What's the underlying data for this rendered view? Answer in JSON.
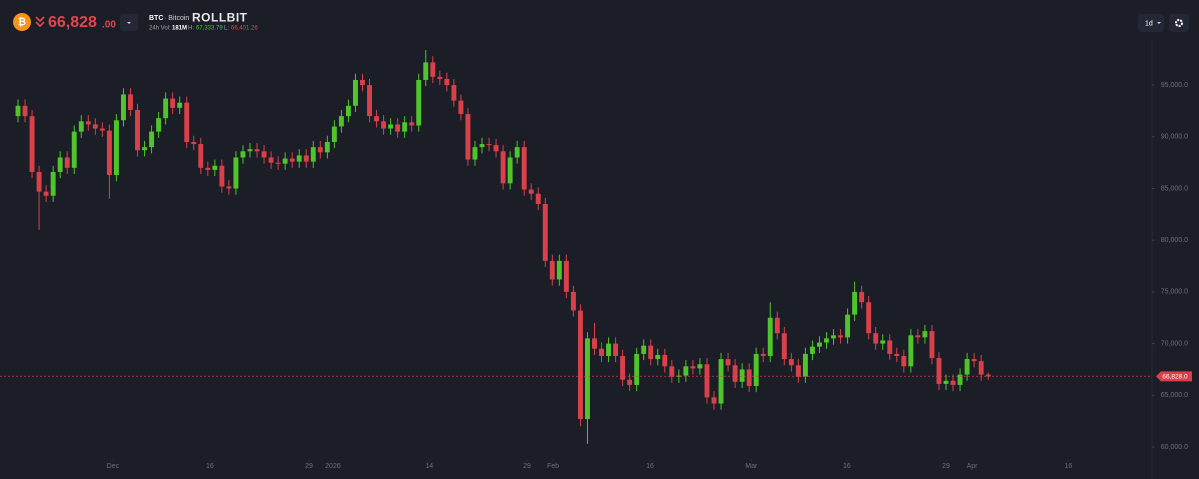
{
  "header": {
    "price": "66,828",
    "price_decimals": ".00",
    "symbol": "BTC",
    "name": "· Bitcoin",
    "brand": "ROLLBIT",
    "volume_label": "24h Vol:",
    "volume": "181M",
    "high_label": "H:",
    "high": "67,333.79",
    "low_label": "L:",
    "low": "66,401.26",
    "interval": "1d"
  },
  "chart_data": {
    "type": "candlestick",
    "up_color": "#4fc42b",
    "down_color": "#d9414a",
    "grid": false,
    "open": [
      92000,
      93000,
      92000,
      86600,
      84700,
      84300,
      86600,
      88000,
      87000,
      90500,
      91500,
      91200,
      90800,
      90600,
      86300,
      91600,
      94100,
      92600,
      88700,
      89000,
      90500,
      91800,
      93700,
      92800,
      93300,
      89500,
      89300,
      87000,
      86800,
      87200,
      85200,
      85000,
      88000,
      88600,
      88800,
      88600,
      88000,
      87500,
      87400,
      87900,
      87600,
      88200,
      87600,
      89000,
      88500,
      89500,
      91000,
      92000,
      93000,
      95500,
      95000,
      92000,
      91500,
      90800,
      91200,
      90500,
      91400,
      91100,
      95500,
      97200,
      95800,
      95600,
      95000,
      93500,
      92200,
      87800,
      89000,
      89300,
      89200,
      88600,
      85500,
      88000,
      89000,
      84900,
      84500,
      83500,
      78000,
      76200,
      78000,
      75000,
      73200,
      62700,
      70500,
      69500,
      68800,
      70000,
      68800,
      66500,
      66000,
      69000,
      69800,
      68500,
      68900,
      67800,
      66800,
      66900,
      67800,
      67600,
      68000,
      64800,
      64200,
      68500,
      67900,
      66300,
      67500,
      65900,
      69000,
      68800,
      72500,
      71000,
      68500,
      67900,
      66800,
      69000,
      69700,
      70100,
      70500,
      70800,
      70600,
      72800,
      75000,
      74000,
      71000,
      70000,
      70300,
      69000,
      68800,
      67800,
      70800,
      70600,
      71200,
      68600,
      66100,
      66400,
      66000,
      67000,
      68500,
      68300,
      67000
    ],
    "high": [
      93600,
      93600,
      92600,
      87200,
      85300,
      87200,
      88600,
      88600,
      91100,
      92100,
      92100,
      91800,
      91400,
      91200,
      92200,
      94700,
      94700,
      93200,
      89600,
      91100,
      92400,
      94300,
      94300,
      93900,
      93900,
      90100,
      89900,
      87600,
      87800,
      87800,
      85800,
      88600,
      89200,
      89400,
      89400,
      89200,
      88600,
      88100,
      88500,
      88500,
      88800,
      88800,
      89600,
      89600,
      90100,
      91600,
      92600,
      93600,
      96100,
      96100,
      95600,
      92600,
      92100,
      91800,
      91800,
      92000,
      92000,
      96100,
      98400,
      97800,
      96400,
      96200,
      95600,
      94100,
      92800,
      89600,
      89900,
      89900,
      89800,
      89200,
      88600,
      89600,
      89600,
      85500,
      85100,
      84100,
      78600,
      78600,
      78600,
      75600,
      73800,
      71100,
      72000,
      70100,
      70600,
      70600,
      69400,
      67100,
      69600,
      70400,
      70400,
      69500,
      69500,
      68400,
      67500,
      68400,
      68400,
      68600,
      68600,
      65400,
      69100,
      69100,
      68500,
      68100,
      68100,
      69600,
      69600,
      74000,
      73100,
      71600,
      69100,
      68500,
      69600,
      70300,
      70700,
      71100,
      71400,
      71400,
      73400,
      76000,
      75600,
      74600,
      71600,
      70900,
      70900,
      69600,
      69400,
      71400,
      71400,
      71800,
      71800,
      69200,
      67000,
      67000,
      67600,
      69100,
      69100,
      68900,
      67200
    ],
    "low": [
      91400,
      91400,
      86000,
      81000,
      83700,
      83700,
      86000,
      86400,
      86400,
      89900,
      90600,
      90200,
      90000,
      84000,
      85700,
      91000,
      92000,
      88100,
      88100,
      88400,
      89900,
      91200,
      92200,
      92200,
      88900,
      88700,
      86400,
      86200,
      86200,
      84600,
      84400,
      84400,
      87400,
      88000,
      88000,
      87400,
      86900,
      86800,
      86800,
      87000,
      87000,
      87000,
      87000,
      87900,
      87900,
      88900,
      90400,
      91400,
      92400,
      94400,
      91400,
      90900,
      90200,
      90200,
      89900,
      89900,
      90500,
      90500,
      94900,
      95200,
      95000,
      94400,
      92900,
      91600,
      87200,
      87200,
      88400,
      88600,
      88000,
      84900,
      84900,
      87400,
      84300,
      83900,
      82900,
      77400,
      75600,
      75600,
      74400,
      72600,
      62000,
      60300,
      68900,
      68200,
      68200,
      68200,
      65900,
      65400,
      65400,
      68400,
      67900,
      67900,
      67200,
      66200,
      66200,
      66300,
      67000,
      67000,
      64200,
      63600,
      63600,
      67300,
      65700,
      65700,
      65300,
      65300,
      68200,
      68200,
      70400,
      67900,
      67300,
      66200,
      66200,
      68400,
      69100,
      69500,
      69900,
      70000,
      70000,
      72200,
      73400,
      70400,
      69400,
      69400,
      68400,
      68200,
      67200,
      67200,
      70000,
      70000,
      68000,
      65500,
      65500,
      65400,
      65400,
      66400,
      67700,
      66400,
      66500
    ],
    "close": [
      93000,
      92000,
      86600,
      84700,
      84300,
      86600,
      88000,
      87000,
      90500,
      91500,
      91200,
      90800,
      90600,
      86300,
      91600,
      94100,
      92600,
      88700,
      89000,
      90500,
      91800,
      93700,
      92800,
      93300,
      89500,
      89300,
      87000,
      86800,
      87200,
      85200,
      85000,
      88000,
      88600,
      88800,
      88600,
      88000,
      87500,
      87400,
      87900,
      87600,
      88200,
      87600,
      89000,
      88500,
      89500,
      91000,
      92000,
      93000,
      95500,
      95000,
      92000,
      91500,
      90800,
      91200,
      90500,
      91400,
      91100,
      95500,
      97200,
      95800,
      95600,
      95000,
      93500,
      92200,
      87800,
      89000,
      89300,
      89200,
      88600,
      85500,
      88000,
      89000,
      84900,
      84500,
      83500,
      78000,
      76200,
      78000,
      75000,
      73200,
      62700,
      70500,
      69500,
      68800,
      70000,
      68800,
      66500,
      66000,
      69000,
      69800,
      68500,
      68900,
      67800,
      66800,
      66900,
      67800,
      67600,
      68000,
      64800,
      64200,
      68500,
      67900,
      66300,
      67500,
      65900,
      69000,
      68800,
      72500,
      71000,
      68500,
      67900,
      66800,
      69000,
      69700,
      70100,
      70500,
      70800,
      70600,
      72800,
      75000,
      74000,
      71000,
      70000,
      70300,
      69000,
      68800,
      67800,
      70800,
      70600,
      71200,
      68600,
      66100,
      66400,
      66000,
      67000,
      68500,
      68300,
      67000,
      66828
    ],
    "last_price": {
      "value": 66828,
      "label": "66,828.0"
    },
    "xlim": [
      -2.56,
      161.3
    ],
    "xticks": [
      {
        "value": 13.5,
        "label": "Dec"
      },
      {
        "value": 27.3,
        "label": "16"
      },
      {
        "value": 41.4,
        "label": "29"
      },
      {
        "value": 44.8,
        "label": "2026"
      },
      {
        "value": 58.5,
        "label": "14"
      },
      {
        "value": 72.4,
        "label": "29"
      },
      {
        "value": 76.1,
        "label": "Feb"
      },
      {
        "value": 89.9,
        "label": "16"
      },
      {
        "value": 104.3,
        "label": "Mar"
      },
      {
        "value": 117.9,
        "label": "16"
      },
      {
        "value": 132,
        "label": "29"
      },
      {
        "value": 135.7,
        "label": "Apr"
      },
      {
        "value": 149.4,
        "label": "16"
      }
    ],
    "ylim": [
      59000,
      99500
    ],
    "yticks": [
      {
        "value": 60000,
        "label": "60,000.0"
      },
      {
        "value": 65000,
        "label": "65,000.0"
      },
      {
        "value": 70000,
        "label": "70,000.0"
      },
      {
        "value": 75000,
        "label": "75,000.0"
      },
      {
        "value": 80000,
        "label": "80,000.0"
      },
      {
        "value": 85000,
        "label": "85,000.0"
      },
      {
        "value": 90000,
        "label": "90,000.0"
      },
      {
        "value": 95000,
        "label": "95,000.0"
      }
    ]
  }
}
